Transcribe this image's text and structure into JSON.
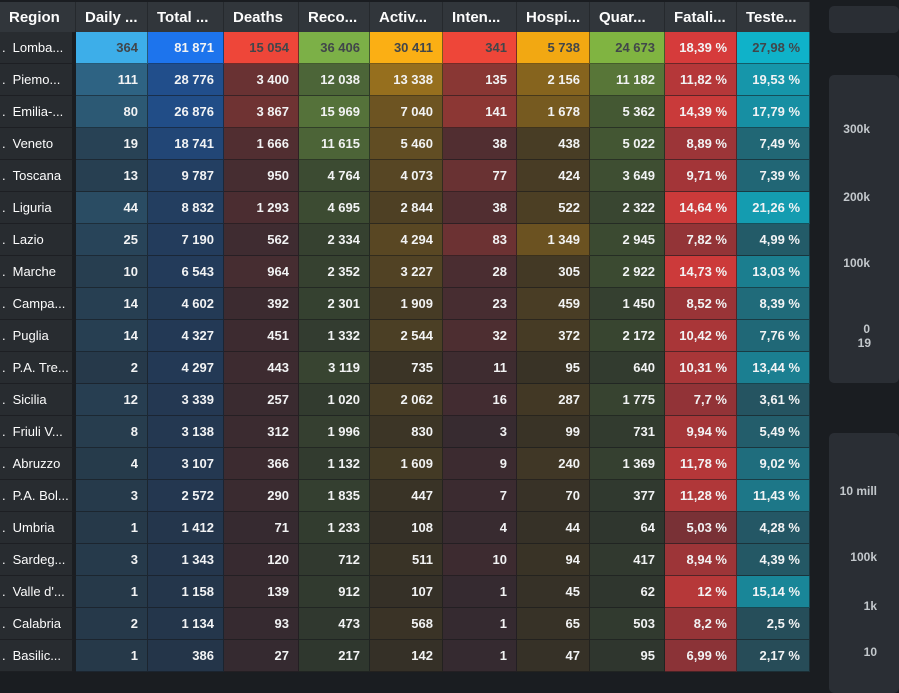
{
  "colors": {
    "page_bg": "#1a1d21",
    "header_bg": "#31363b",
    "region_cell_bg": "#282c30",
    "card_bg": "#2a2e34",
    "text_light": "#f2f3f4",
    "text_dark_on_bright": "#41464a"
  },
  "table": {
    "row_number_prefix": ".",
    "columns": [
      {
        "key": "region",
        "label": "Region"
      },
      {
        "key": "daily",
        "label": "Daily ...",
        "high": "#3daee9",
        "low": "#263848"
      },
      {
        "key": "total",
        "label": "Total ...",
        "high": "#1d74ed",
        "low": "#243447"
      },
      {
        "key": "deaths",
        "label": "Deaths",
        "high": "#ee4639",
        "low": "#342a30"
      },
      {
        "key": "recovered",
        "label": "Reco...",
        "high": "#7cb047",
        "low": "#2e352e"
      },
      {
        "key": "active",
        "label": "Activ...",
        "high": "#fbaf14",
        "low": "#332f27"
      },
      {
        "key": "intensive",
        "label": "Inten...",
        "high": "#ee4639",
        "low": "#342a30"
      },
      {
        "key": "hospitalized",
        "label": "Hospi...",
        "high": "#f2a812",
        "low": "#332f27"
      },
      {
        "key": "quarantined",
        "label": "Quar...",
        "high": "#80b441",
        "low": "#2e352e"
      },
      {
        "key": "fatality",
        "label": "Fatali...",
        "high": "#d63b3b",
        "low": "#3c2a32"
      },
      {
        "key": "tested",
        "label": "Teste...",
        "high": "#0fb2c9",
        "low": "#2b3a44"
      }
    ],
    "rows": [
      [
        "Lomba...",
        "364",
        "81 871",
        "15 054",
        "36 406",
        "30 411",
        "341",
        "5 738",
        "24 673",
        "18,39 %",
        "27,98 %"
      ],
      [
        "Piemo...",
        "111",
        "28 776",
        "3 400",
        "12 038",
        "13 338",
        "135",
        "2 156",
        "11 182",
        "11,82 %",
        "19,53 %"
      ],
      [
        "Emilia-...",
        "80",
        "26 876",
        "3 867",
        "15 969",
        "7 040",
        "141",
        "1 678",
        "5 362",
        "14,39 %",
        "17,79 %"
      ],
      [
        "Veneto",
        "19",
        "18 741",
        "1 666",
        "11 615",
        "5 460",
        "38",
        "438",
        "5 022",
        "8,89 %",
        "7,49 %"
      ],
      [
        "Toscana",
        "13",
        "9 787",
        "950",
        "4 764",
        "4 073",
        "77",
        "424",
        "3 649",
        "9,71 %",
        "7,39 %"
      ],
      [
        "Liguria",
        "44",
        "8 832",
        "1 293",
        "4 695",
        "2 844",
        "38",
        "522",
        "2 322",
        "14,64 %",
        "21,26 %"
      ],
      [
        "Lazio",
        "25",
        "7 190",
        "562",
        "2 334",
        "4 294",
        "83",
        "1 349",
        "2 945",
        "7,82 %",
        "4,99 %"
      ],
      [
        "Marche",
        "10",
        "6 543",
        "964",
        "2 352",
        "3 227",
        "28",
        "305",
        "2 922",
        "14,73 %",
        "13,03 %"
      ],
      [
        "Campa...",
        "14",
        "4 602",
        "392",
        "2 301",
        "1 909",
        "23",
        "459",
        "1 450",
        "8,52 %",
        "8,39 %"
      ],
      [
        "Puglia",
        "14",
        "4 327",
        "451",
        "1 332",
        "2 544",
        "32",
        "372",
        "2 172",
        "10,42 %",
        "7,76 %"
      ],
      [
        "P.A. Tre...",
        "2",
        "4 297",
        "443",
        "3 119",
        "735",
        "11",
        "95",
        "640",
        "10,31 %",
        "13,44 %"
      ],
      [
        "Sicilia",
        "12",
        "3 339",
        "257",
        "1 020",
        "2 062",
        "16",
        "287",
        "1 775",
        "7,7 %",
        "3,61 %"
      ],
      [
        "Friuli V...",
        "8",
        "3 138",
        "312",
        "1 996",
        "830",
        "3",
        "99",
        "731",
        "9,94 %",
        "5,49 %"
      ],
      [
        "Abruzzo",
        "4",
        "3 107",
        "366",
        "1 132",
        "1 609",
        "9",
        "240",
        "1 369",
        "11,78 %",
        "9,02 %"
      ],
      [
        "P.A. Bol...",
        "3",
        "2 572",
        "290",
        "1 835",
        "447",
        "7",
        "70",
        "377",
        "11,28 %",
        "11,43 %"
      ],
      [
        "Umbria",
        "1",
        "1 412",
        "71",
        "1 233",
        "108",
        "4",
        "44",
        "64",
        "5,03 %",
        "4,28 %"
      ],
      [
        "Sardeg...",
        "3",
        "1 343",
        "120",
        "712",
        "511",
        "10",
        "94",
        "417",
        "8,94 %",
        "4,39 %"
      ],
      [
        "Valle d'...",
        "1",
        "1 158",
        "139",
        "912",
        "107",
        "1",
        "45",
        "62",
        "12 %",
        "15,14 %"
      ],
      [
        "Calabria",
        "2",
        "1 134",
        "93",
        "473",
        "568",
        "1",
        "65",
        "503",
        "8,2 %",
        "2,5 %"
      ],
      [
        "Basilic...",
        "1",
        "386",
        "27",
        "217",
        "142",
        "1",
        "47",
        "95",
        "6,99 %",
        "2,17 %"
      ]
    ]
  },
  "side_panels": {
    "linear_chart": {
      "y_axis_ticks": [
        "300k",
        "200k",
        "100k",
        "0"
      ],
      "x_axis_tick_partial": "19"
    },
    "log_chart": {
      "y_axis_ticks": [
        "10 mill",
        "100k",
        "1k",
        "10"
      ]
    }
  }
}
